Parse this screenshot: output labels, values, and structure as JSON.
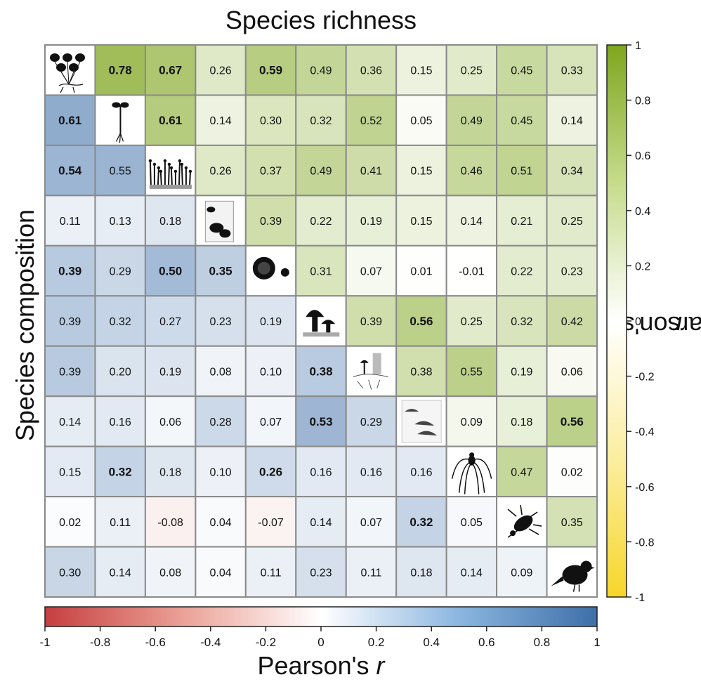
{
  "labels": {
    "top": "Species richness",
    "left": "Species composition",
    "colorbar_title_prefix": "Pearson's ",
    "colorbar_title_var": "r"
  },
  "chart_data": {
    "type": "heatmap",
    "n": 11,
    "diagonal_icons": [
      "plant-icon",
      "seedling-icon",
      "moss-icon",
      "lichen-on-wood-icon",
      "lichen-icon",
      "mushroom-icon",
      "mycorrhiza-icon",
      "bracket-fungus-icon",
      "spider-icon",
      "beetle-icon",
      "bird-icon"
    ],
    "upper_scale": "Species richness (green, right colorbar)",
    "lower_scale": "Species composition (blue, bottom colorbar)",
    "values": [
      [
        null,
        "0.78",
        "0.67",
        "0.26",
        "0.59",
        "0.49",
        "0.36",
        "0.15",
        "0.25",
        "0.45",
        "0.33"
      ],
      [
        "0.61",
        null,
        "0.61",
        "0.14",
        "0.30",
        "0.32",
        "0.52",
        "0.05",
        "0.49",
        "0.45",
        "0.14"
      ],
      [
        "0.54",
        "0.55",
        null,
        "0.26",
        "0.37",
        "0.49",
        "0.41",
        "0.15",
        "0.46",
        "0.51",
        "0.34"
      ],
      [
        "0.11",
        "0.13",
        "0.18",
        null,
        "0.39",
        "0.22",
        "0.19",
        "0.15",
        "0.14",
        "0.21",
        "0.25"
      ],
      [
        "0.39",
        "0.29",
        "0.50",
        "0.35",
        null,
        "0.31",
        "0.07",
        "0.01",
        "-0.01",
        "0.22",
        "0.23"
      ],
      [
        "0.39",
        "0.32",
        "0.27",
        "0.23",
        "0.19",
        null,
        "0.39",
        "0.56",
        "0.25",
        "0.32",
        "0.42"
      ],
      [
        "0.39",
        "0.20",
        "0.19",
        "0.08",
        "0.10",
        "0.38",
        null,
        "0.38",
        "0.55",
        "0.19",
        "0.06"
      ],
      [
        "0.14",
        "0.16",
        "0.06",
        "0.28",
        "0.07",
        "0.53",
        "0.29",
        null,
        "0.09",
        "0.18",
        "0.56"
      ],
      [
        "0.15",
        "0.32",
        "0.18",
        "0.10",
        "0.26",
        "0.16",
        "0.16",
        "0.16",
        null,
        "0.47",
        "0.02"
      ],
      [
        "0.02",
        "0.11",
        "-0.08",
        "0.04",
        "-0.07",
        "0.14",
        "0.07",
        "0.32",
        "0.05",
        null,
        "0.35"
      ],
      [
        "0.30",
        "0.14",
        "0.08",
        "0.04",
        "0.11",
        "0.23",
        "0.11",
        "0.18",
        "0.14",
        "0.09",
        null
      ]
    ],
    "bold": [
      [
        0,
        1
      ],
      [
        0,
        2
      ],
      [
        0,
        4
      ],
      [
        1,
        0
      ],
      [
        1,
        2
      ],
      [
        2,
        0
      ],
      [
        4,
        0
      ],
      [
        4,
        2
      ],
      [
        4,
        3
      ],
      [
        5,
        7
      ],
      [
        6,
        5
      ],
      [
        7,
        5
      ],
      [
        7,
        10
      ],
      [
        8,
        1
      ],
      [
        8,
        4
      ],
      [
        9,
        7
      ]
    ],
    "right_colorbar": {
      "range": [
        -1,
        1
      ],
      "ticks": [
        "1",
        "0.8",
        "0.6",
        "0.4",
        "0.2",
        "0",
        "-0.2",
        "-0.4",
        "-0.6",
        "-0.8",
        "-1"
      ],
      "colors": {
        "low": "#f7d62a",
        "mid": "#ffffff",
        "high": "#7fa61f"
      }
    },
    "bottom_colorbar": {
      "range": [
        -1,
        1
      ],
      "ticks": [
        "-1",
        "-0.8",
        "-0.6",
        "-0.4",
        "-0.2",
        "0",
        "0.2",
        "0.4",
        "0.6",
        "0.8",
        "1"
      ],
      "colors": {
        "low": "#c63f3f",
        "mid": "#ffffff",
        "high": "#3e6fa8"
      }
    }
  }
}
